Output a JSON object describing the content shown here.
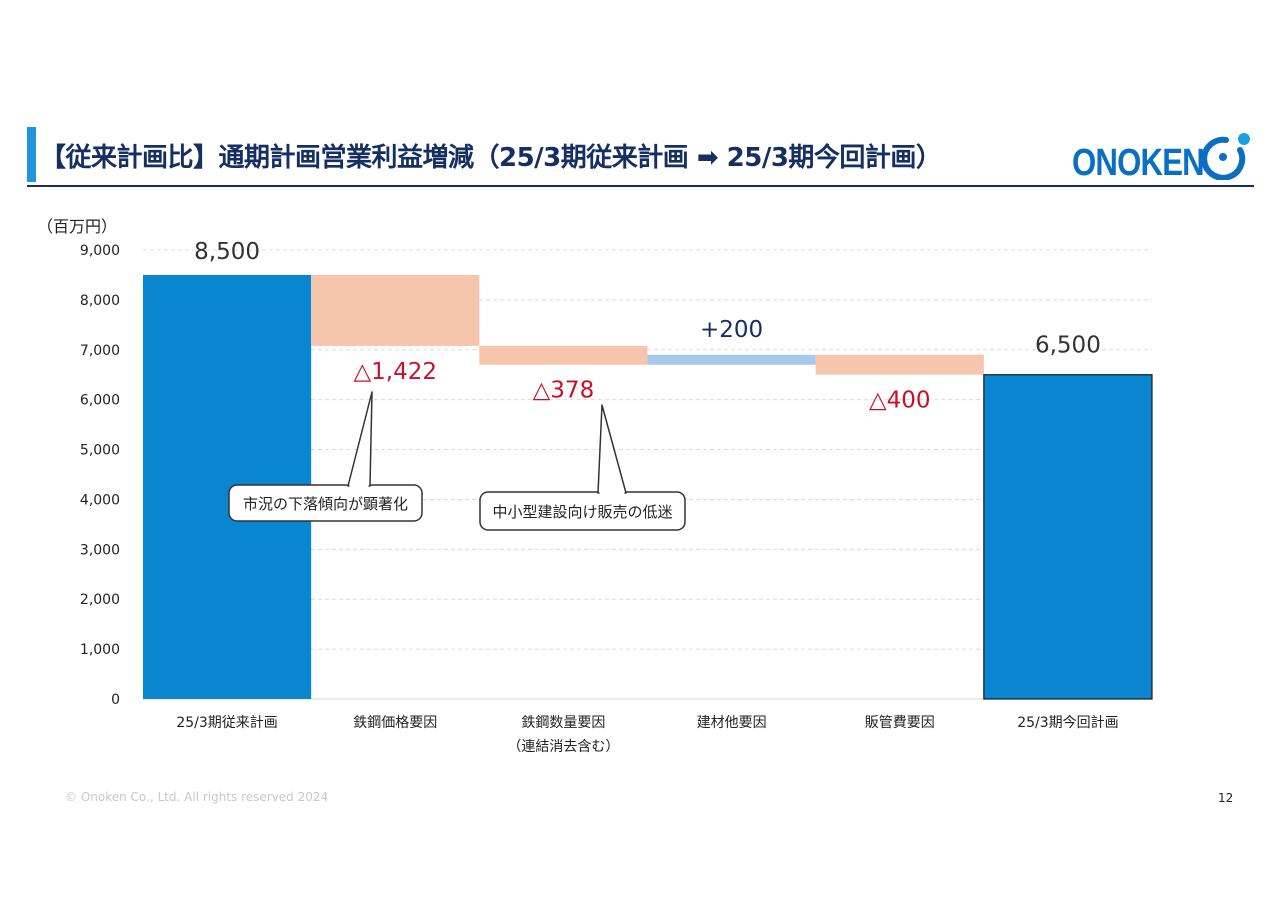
{
  "header": {
    "title": "【従来計画比】通期計画営業利益増減（25/3期従来計画 ➡ 25/3期今回計画）",
    "logo_text": "ONOKEN"
  },
  "chart_data": {
    "type": "waterfall",
    "unit_label": "（百万円）",
    "ylim": [
      0,
      9000
    ],
    "yticks": [
      "0",
      "1,000",
      "2,000",
      "3,000",
      "4,000",
      "5,000",
      "6,000",
      "7,000",
      "8,000",
      "9,000"
    ],
    "grid": true,
    "categories": [
      {
        "label": "25/3期従来計画",
        "sublabel": ""
      },
      {
        "label": "鉄鋼価格要因",
        "sublabel": ""
      },
      {
        "label": "鉄鋼数量要因",
        "sublabel": "（連結消去含む）"
      },
      {
        "label": "建材他要因",
        "sublabel": ""
      },
      {
        "label": "販管費要因",
        "sublabel": ""
      },
      {
        "label": "25/3期今回計画",
        "sublabel": ""
      }
    ],
    "bars": [
      {
        "kind": "total",
        "start": 0,
        "end": 8500,
        "label": "8,500"
      },
      {
        "kind": "decrease",
        "start": 8500,
        "end": 7078,
        "label": "△1,422"
      },
      {
        "kind": "decrease",
        "start": 7078,
        "end": 6700,
        "label": "△378"
      },
      {
        "kind": "increase",
        "start": 6700,
        "end": 6900,
        "label": "+200"
      },
      {
        "kind": "decrease",
        "start": 6900,
        "end": 6500,
        "label": "△400"
      },
      {
        "kind": "total",
        "start": 0,
        "end": 6500,
        "label": "6,500"
      }
    ],
    "colors": {
      "total": "#0a86d1",
      "decrease": "#f5c6ac",
      "increase": "#a6c8ea",
      "decrease_label": "#c8102e",
      "total_label": "#333333",
      "increase_label": "#152f63"
    },
    "callouts": [
      {
        "text": "市況の下落傾向が顕著化",
        "target_bar": 1
      },
      {
        "text": "中小型建設向け販売の低迷",
        "target_bar": 2
      }
    ]
  },
  "footer": {
    "copyright": "© Onoken Co., Ltd. All rights reserved 2024",
    "page_number": "12"
  }
}
